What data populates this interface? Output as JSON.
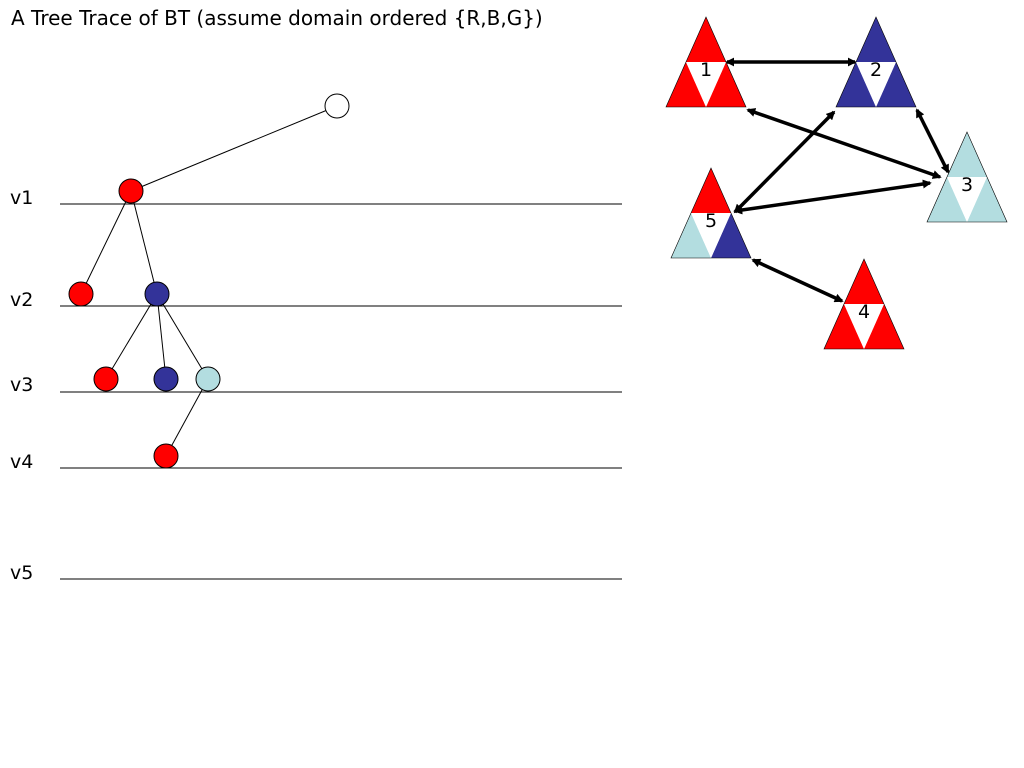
{
  "title": "A Tree Trace of BT (assume domain ordered {R,B,G})",
  "levels": [
    "v1",
    "v2",
    "v3",
    "v4",
    "v5"
  ],
  "colors": {
    "R": "#ff0000",
    "B": "#333399",
    "G": "#b3dde0",
    "empty": "#ffffff",
    "line": "#000000"
  },
  "tree": {
    "nodes": [
      {
        "id": "root",
        "level": 0,
        "color": "empty"
      },
      {
        "id": "v1-R",
        "level": 1,
        "color": "R"
      },
      {
        "id": "v2-R",
        "level": 2,
        "color": "R"
      },
      {
        "id": "v2-B",
        "level": 2,
        "color": "B"
      },
      {
        "id": "v3-R",
        "level": 3,
        "color": "R"
      },
      {
        "id": "v3-B",
        "level": 3,
        "color": "B"
      },
      {
        "id": "v3-G",
        "level": 3,
        "color": "G"
      },
      {
        "id": "v4-R",
        "level": 4,
        "color": "R"
      }
    ],
    "edges": [
      [
        "root",
        "v1-R"
      ],
      [
        "v1-R",
        "v2-R"
      ],
      [
        "v1-R",
        "v2-B"
      ],
      [
        "v2-B",
        "v3-R"
      ],
      [
        "v2-B",
        "v3-B"
      ],
      [
        "v2-B",
        "v3-G"
      ],
      [
        "v3-G",
        "v4-R"
      ]
    ]
  },
  "graph": {
    "nodes": [
      {
        "label": "1",
        "top": "R",
        "left": "R",
        "right": "R"
      },
      {
        "label": "2",
        "top": "B",
        "left": "B",
        "right": "B"
      },
      {
        "label": "3",
        "top": "G",
        "left": "G",
        "right": "G"
      },
      {
        "label": "4",
        "top": "R",
        "left": "R",
        "right": "R"
      },
      {
        "label": "5",
        "top": "R",
        "left": "G",
        "right": "B"
      }
    ],
    "edges": [
      [
        "1",
        "2"
      ],
      [
        "1",
        "3"
      ],
      [
        "2",
        "3"
      ],
      [
        "2",
        "5"
      ],
      [
        "3",
        "5"
      ],
      [
        "5",
        "4"
      ]
    ]
  }
}
